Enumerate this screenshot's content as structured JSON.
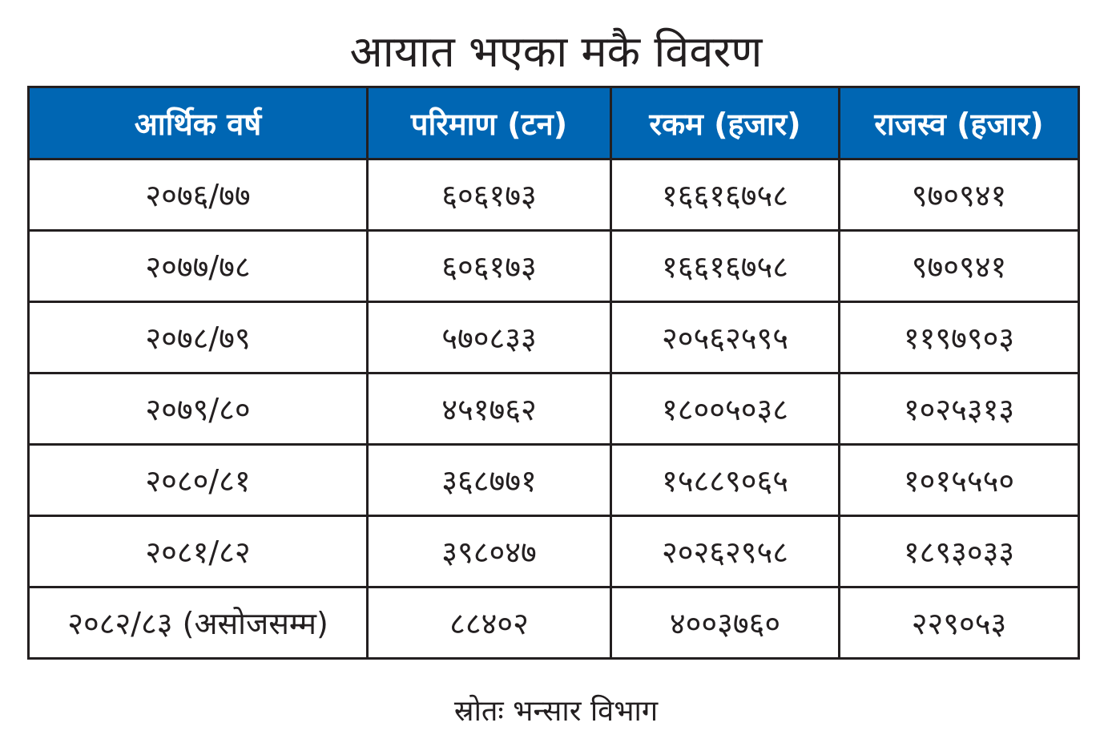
{
  "title": "आयात भएका मकै विवरण",
  "table": {
    "headers": [
      "आर्थिक वर्ष",
      "परिमाण (टन)",
      "रकम (हजार)",
      "राजस्व (हजार)"
    ],
    "rows": [
      [
        "२०७६/७७",
        "६०६१७३",
        "१६६१६७५८",
        "९७०९४१"
      ],
      [
        "२०७७/७८",
        "६०६१७३",
        "१६६१६७५८",
        "९७०९४१"
      ],
      [
        "२०७८/७९",
        "५७०८३३",
        "२०५६२५९५",
        "११९७९०३"
      ],
      [
        "२०७९/८०",
        "४५१७६२",
        "१८००५०३८",
        "१०२५३१३"
      ],
      [
        "२०८०/८१",
        "३६८७७१",
        "१५८८९०६५",
        "१०१५५५०"
      ],
      [
        "२०८१/८२",
        "३९८०४७",
        "२०२६२९५८",
        "१८९३०३३"
      ],
      [
        "२०८२/८३ (असोजसम्म)",
        "८८४०२",
        "४००३७६०",
        "२२९०५३"
      ]
    ]
  },
  "source": "स्रोतः भन्सार विभाग",
  "colors": {
    "header_background": "#0066b3",
    "header_text": "#ffffff",
    "text": "#231f20",
    "border": "#231f20"
  }
}
